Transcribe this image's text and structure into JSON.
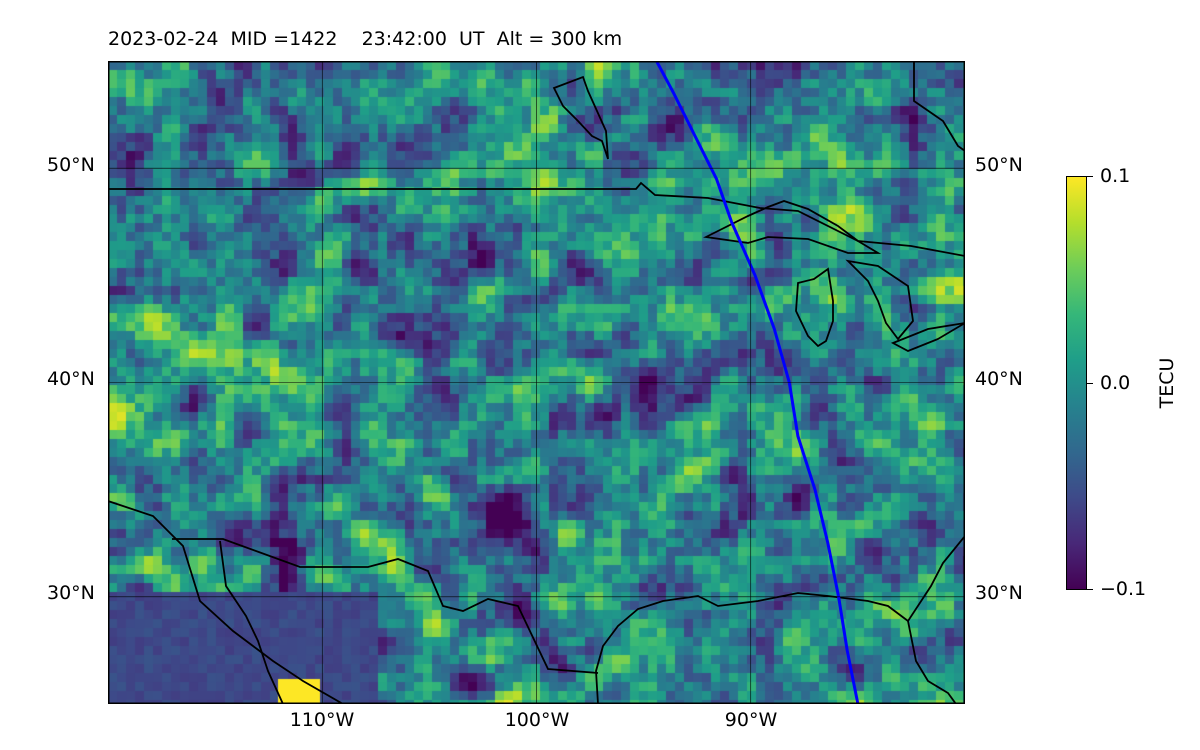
{
  "title": "2023-02-24  MID =1422    23:42:00  UT  Alt = 300 km",
  "map": {
    "projection": "plate carree",
    "extent_lon": [
      -120,
      -80
    ],
    "extent_lat": [
      25,
      55
    ],
    "gridlines": true,
    "lat_ticks": [
      {
        "value": 50,
        "label": "50°N"
      },
      {
        "value": 40,
        "label": "40°N"
      },
      {
        "value": 30,
        "label": "30°N"
      }
    ],
    "lon_ticks": [
      {
        "value": -110,
        "label": "110°W"
      },
      {
        "value": -100,
        "label": "100°W"
      },
      {
        "value": -90,
        "label": "90°W"
      }
    ],
    "coastlines_color": "#000000",
    "track_color": "#0000ff",
    "track_points": [
      [
        -94.4,
        55
      ],
      [
        -93.6,
        53.5
      ],
      [
        -92.6,
        51.5
      ],
      [
        -91.6,
        49.5
      ],
      [
        -90.9,
        47.5
      ],
      [
        -89.8,
        45
      ],
      [
        -88.9,
        42.5
      ],
      [
        -88.2,
        40
      ],
      [
        -87.8,
        37.5
      ],
      [
        -87.0,
        35
      ],
      [
        -86.4,
        32.5
      ],
      [
        -85.9,
        30
      ],
      [
        -85.5,
        27.5
      ],
      [
        -85.0,
        25
      ]
    ]
  },
  "colorbar": {
    "label": "TECU",
    "min": -0.1,
    "max": 0.1,
    "colormap": "viridis",
    "ticks": [
      {
        "value": 0.1,
        "label": "0.1"
      },
      {
        "value": 0.0,
        "label": "0.0"
      },
      {
        "value": -0.1,
        "label": "−0.1"
      }
    ]
  }
}
